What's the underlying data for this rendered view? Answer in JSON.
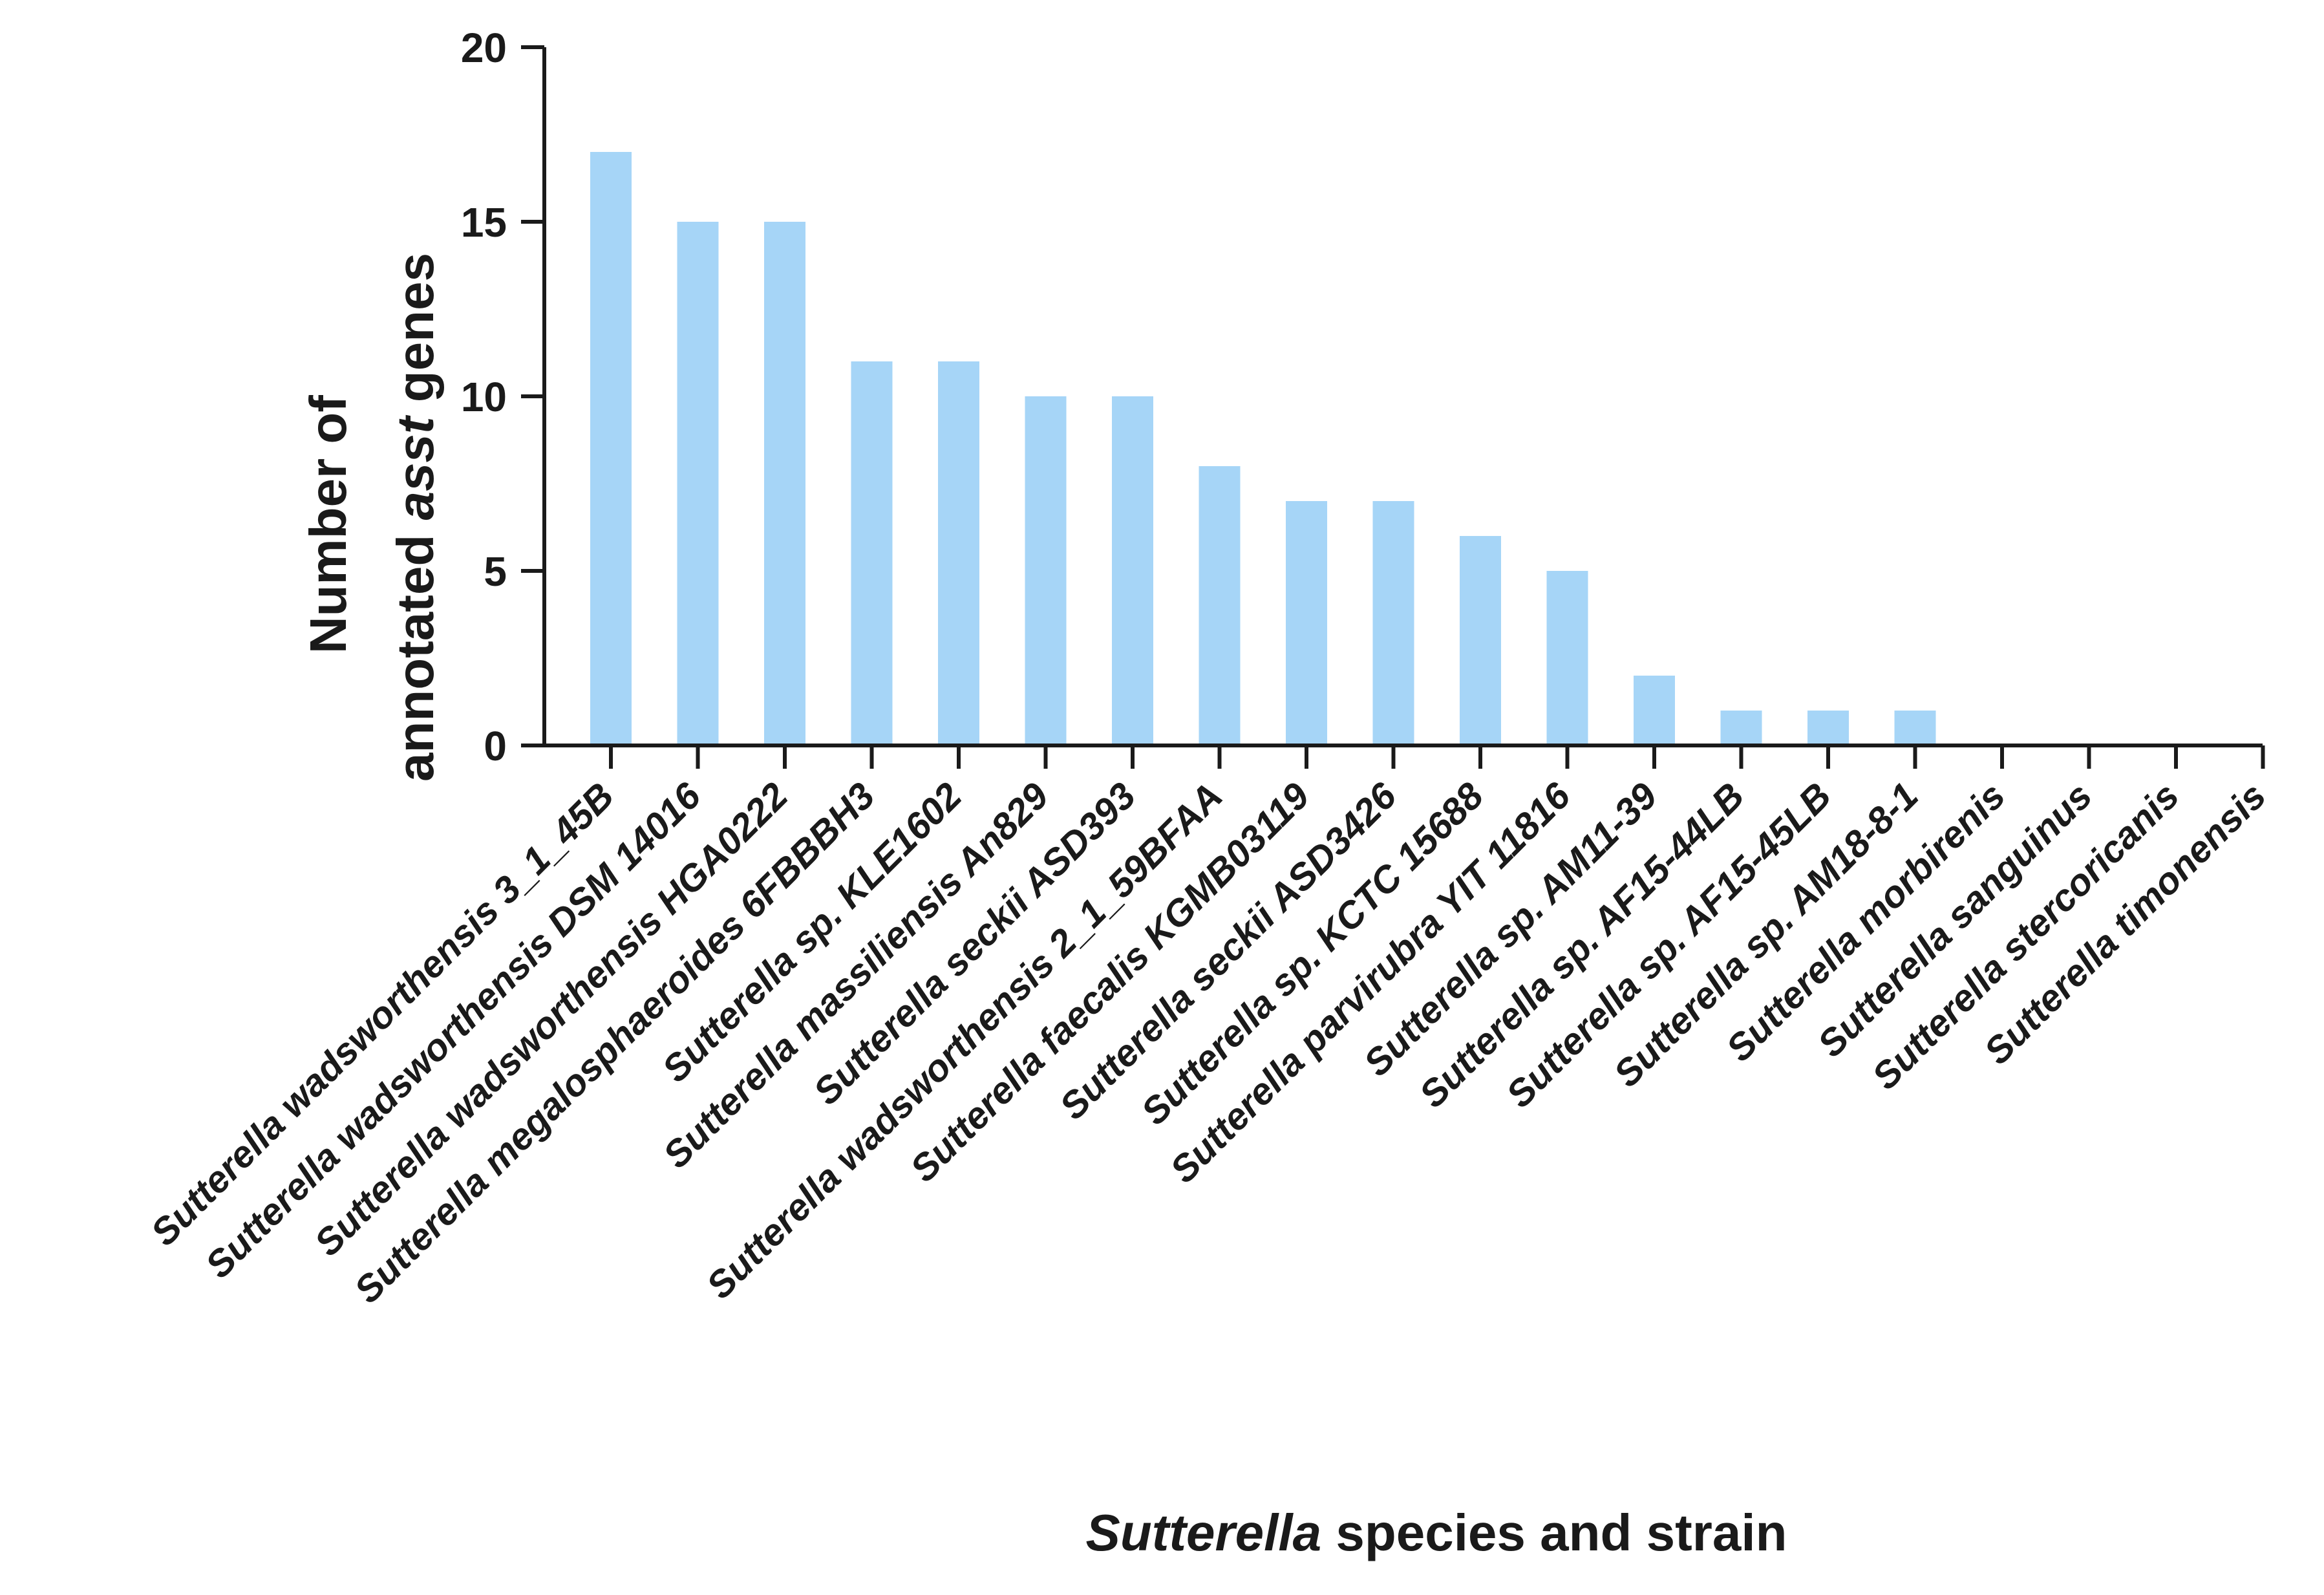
{
  "chart_data": {
    "type": "bar",
    "categories": [
      "Sutterella wadsworthensis 3_1_45B",
      "Sutterella wadsworthensis DSM 14016",
      "Sutterella wadsworthensis HGA0222",
      "Sutterella megalosphaeroides 6FBBBH3",
      "Sutterella sp. KLE1602",
      "Sutterella massiliensis An829",
      "Sutterella seckii ASD393",
      "Sutterella wadsworthensis 2_1_59BFAA",
      "Sutterella faecalis KGMB03119",
      "Sutterella seckii ASD3426",
      "Sutterella sp. KCTC 15688",
      "Sutterella parvirubra YIT 11816",
      "Sutterella sp. AM11-39",
      "Sutterella sp. AF15-44LB",
      "Sutterella sp. AF15-45LB",
      "Sutterella sp. AM18-8-1",
      "Sutterella morbirenis",
      "Sutterella sanguinus",
      "Sutterella stercoricanis",
      "Sutterella timonensis"
    ],
    "values": [
      17,
      15,
      15,
      11,
      11,
      10,
      10,
      8,
      7,
      7,
      6,
      5,
      2,
      1,
      1,
      1,
      0,
      0,
      0,
      0
    ],
    "ylabel_line1": "Number of",
    "ylabel_line2_prefix": "annotated ",
    "ylabel_line2_italic": "asst",
    "ylabel_line2_suffix": " genes",
    "xlabel_italic": "Sutterella",
    "xlabel_rest": " species and strain",
    "ylim": [
      0,
      20
    ],
    "yticks": [
      0,
      5,
      10,
      15,
      20
    ],
    "bar_color": "#a6d5f7",
    "axis_color": "#1a1a1a",
    "grid": false
  }
}
